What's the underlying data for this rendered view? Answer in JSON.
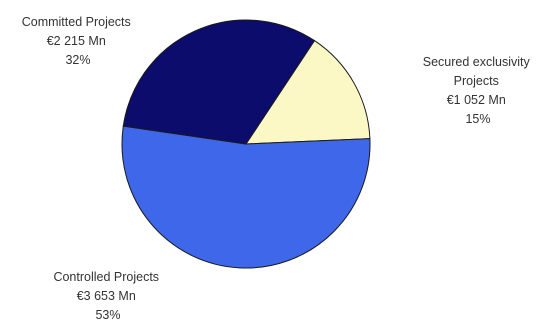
{
  "chart_data": {
    "type": "pie",
    "title": "",
    "slices": [
      {
        "name": "Secured exclusivity Projects",
        "lines": [
          "Secured exclusivity",
          "Projects"
        ],
        "amount": "€1 052 Mn",
        "percent_label": "15%",
        "value": 15,
        "color": "#fbf8c6"
      },
      {
        "name": "Controlled Projects",
        "lines": [
          "Controlled Projects"
        ],
        "amount": "€3 653 Mn",
        "percent_label": "53%",
        "value": 53,
        "color": "#3f67ea"
      },
      {
        "name": "Committed Projects",
        "lines": [
          "Committed Projects"
        ],
        "amount": "€2 215 Mn",
        "percent_label": "32%",
        "value": 32,
        "color": "#0b0c6c"
      }
    ]
  }
}
